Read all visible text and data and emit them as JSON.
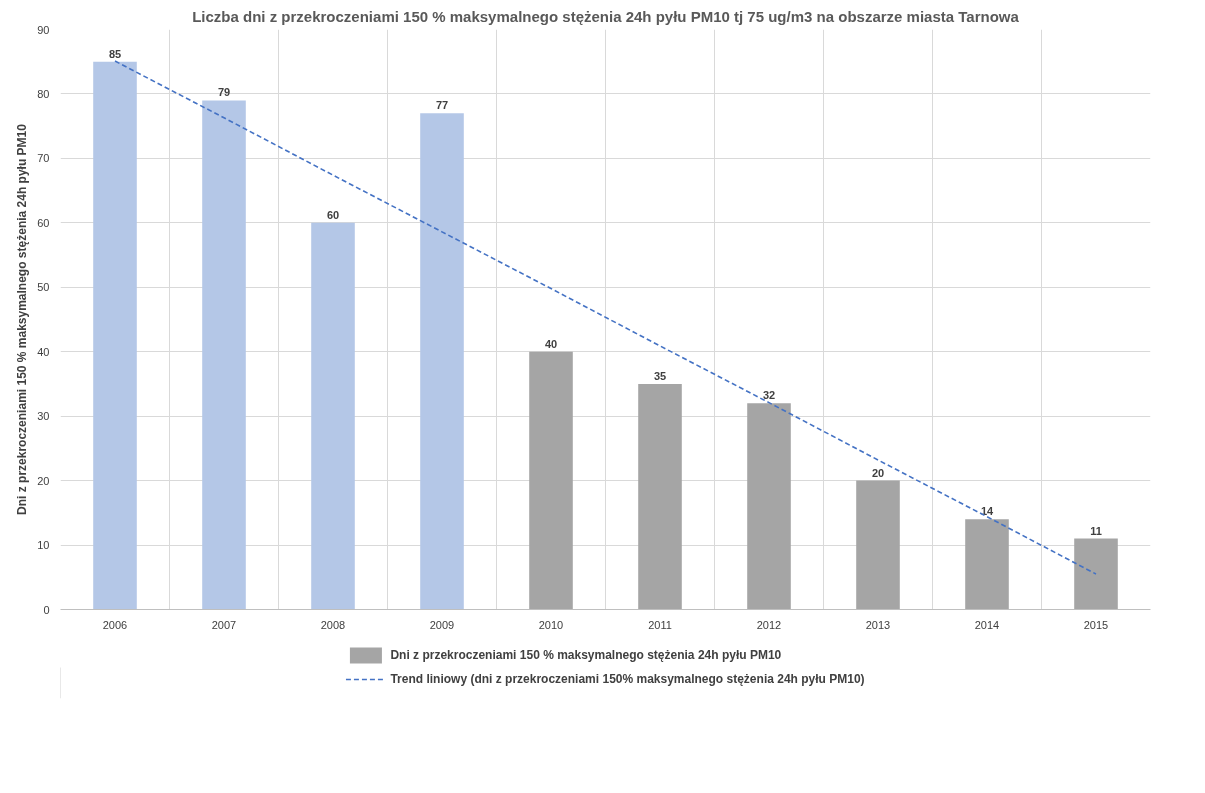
{
  "chart_data": {
    "type": "bar",
    "title": "Liczba dni z przekroczeniami 150 % maksymalnego stężenia 24h pyłu PM10 tj 75 ug/m3 na obszarze miasta Tarnowa",
    "ylabel": "Dni z przekroczeniami 150 % maksymalnego stężenia 24h pyłu PM10",
    "categories": [
      "2006",
      "2007",
      "2008",
      "2009",
      "2010",
      "2011",
      "2012",
      "2013",
      "2014",
      "2015"
    ],
    "series": [
      {
        "name": "Dni z przekroczeniami 150 % maksymalnego stężenia 24h pyłu PM10",
        "color": "#a5a5a5",
        "colors": [
          "#b4c7e7",
          "#b4c7e7",
          "#b4c7e7",
          "#b4c7e7",
          "#a5a5a5",
          "#a5a5a5",
          "#a5a5a5",
          "#a5a5a5",
          "#a5a5a5",
          "#a5a5a5"
        ],
        "values": [
          85,
          79,
          60,
          77,
          40,
          35,
          32,
          20,
          14,
          11
        ],
        "value_labels": [
          "85",
          "79",
          "60",
          "77",
          "40",
          "35",
          "32",
          "20",
          "14",
          "11"
        ]
      },
      {
        "type": "line",
        "name": "Trend liniowy (dni z przekroczeniami 150% maksymalnego stężenia 24h pyłu PM10)",
        "color": "#4472c4",
        "line_style": "dashed",
        "values": [
          85.1,
          76.3,
          67.4,
          58.6,
          49.8,
          40.9,
          32.1,
          23.2,
          14.4,
          5.5
        ]
      }
    ],
    "ylim": [
      0,
      90
    ],
    "yticks": [
      0,
      10,
      20,
      30,
      40,
      50,
      60,
      70,
      80,
      90
    ],
    "grid": true,
    "legend": "bottom"
  }
}
